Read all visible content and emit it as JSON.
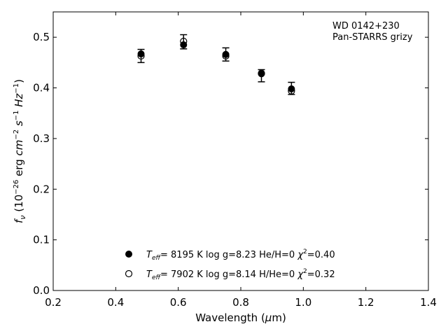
{
  "chart_data": {
    "type": "scatter",
    "title": "",
    "xlabel_prefix": "Wavelength (",
    "xlabel_unit_symbol": "μ",
    "xlabel_suffix": "m)",
    "ylabel_prefix": "f",
    "ylabel_sub": "ν",
    "ylabel_open": " (10",
    "ylabel_exp1": "−26",
    "ylabel_mid1": " erg ",
    "ylabel_cm": "cm",
    "ylabel_exp2": "−2",
    "ylabel_s": " s",
    "ylabel_exp3": "−1",
    "ylabel_hz": " Hz",
    "ylabel_exp4": "−1",
    "ylabel_close": ")",
    "xlim": [
      0.2,
      1.4
    ],
    "ylim": [
      0.0,
      0.55
    ],
    "xticks": [
      0.2,
      0.4,
      0.6,
      0.8,
      1.0,
      1.2,
      1.4
    ],
    "xtick_labels": [
      "0.2",
      "0.4",
      "0.6",
      "0.8",
      "1.0",
      "1.2",
      "1.4"
    ],
    "yticks": [
      0.0,
      0.1,
      0.2,
      0.3,
      0.4,
      0.5
    ],
    "ytick_labels": [
      "0.0",
      "0.1",
      "0.2",
      "0.3",
      "0.4",
      "0.5"
    ],
    "grid": false,
    "annotation": {
      "line1": "WD 0142+230",
      "line2": "Pan-STARRS grizy"
    },
    "observed": {
      "x": [
        0.481,
        0.617,
        0.752,
        0.866,
        0.962
      ],
      "y": [
        0.463,
        0.491,
        0.466,
        0.424,
        0.399
      ],
      "err": [
        0.013,
        0.014,
        0.013,
        0.012,
        0.012
      ]
    },
    "series": [
      {
        "marker": "filled",
        "x": [
          0.481,
          0.617,
          0.752,
          0.866,
          0.962
        ],
        "y": [
          0.467,
          0.485,
          0.466,
          0.429,
          0.398
        ],
        "legend": {
          "teff_label": "T",
          "teff_sub": "eff",
          "teff_value": "=  8195 K",
          "logg": "  log g=8.23",
          "composition": "  He/H=0",
          "chi_symbol": "  χ",
          "chi_exp": "2",
          "chi_value": "=0.40"
        }
      },
      {
        "marker": "open",
        "x": [
          0.481,
          0.617,
          0.752,
          0.866,
          0.962
        ],
        "y": [
          0.463,
          0.492,
          0.463,
          0.428,
          0.394
        ],
        "legend": {
          "teff_label": "T",
          "teff_sub": "eff",
          "teff_value": "=  7902 K",
          "logg": "  log g=8.14",
          "composition": "  H/He=0",
          "chi_symbol": "  χ",
          "chi_exp": "2",
          "chi_value": "=0.32"
        }
      }
    ],
    "legend_position": "lower-center"
  }
}
